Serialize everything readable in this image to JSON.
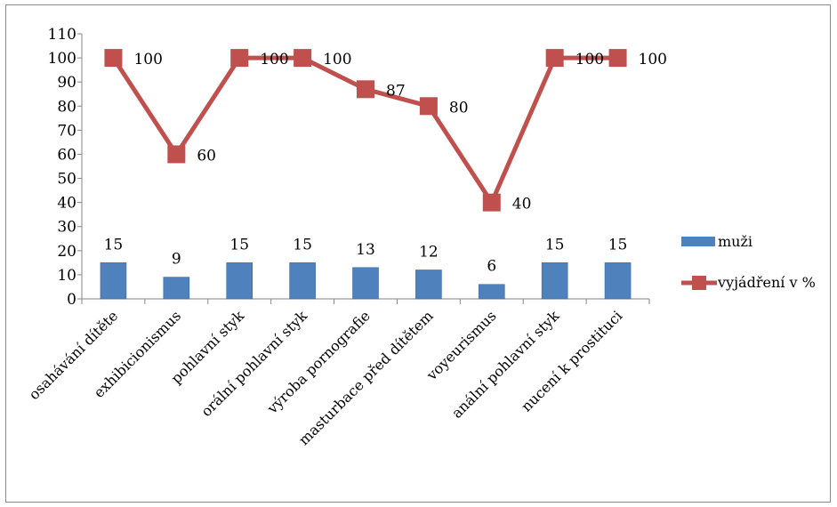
{
  "chart_data": {
    "type": "bar",
    "categories": [
      "osahávání dítěte",
      "exhibicionismus",
      "pohlavní styk",
      "orální pohlavní styk",
      "výroba pornografie",
      "masturbace před dítětem",
      "voyeurismus",
      "anální pohlavní styk",
      "nucení k prostituci"
    ],
    "series": [
      {
        "name": "muži",
        "type": "bar",
        "color": "#4f81bd",
        "values": [
          15,
          9,
          15,
          15,
          13,
          12,
          6,
          15,
          15
        ]
      },
      {
        "name": "vyjádření v %",
        "type": "line",
        "color": "#c0504d",
        "values": [
          100,
          60,
          100,
          100,
          87,
          80,
          40,
          100,
          100
        ]
      }
    ],
    "y_ticks": [
      "0",
      "10",
      "20",
      "30",
      "40",
      "50",
      "60",
      "70",
      "80",
      "90",
      "100",
      "110"
    ],
    "ylim": [
      0,
      110
    ],
    "grid": false,
    "legend_position": "right"
  }
}
